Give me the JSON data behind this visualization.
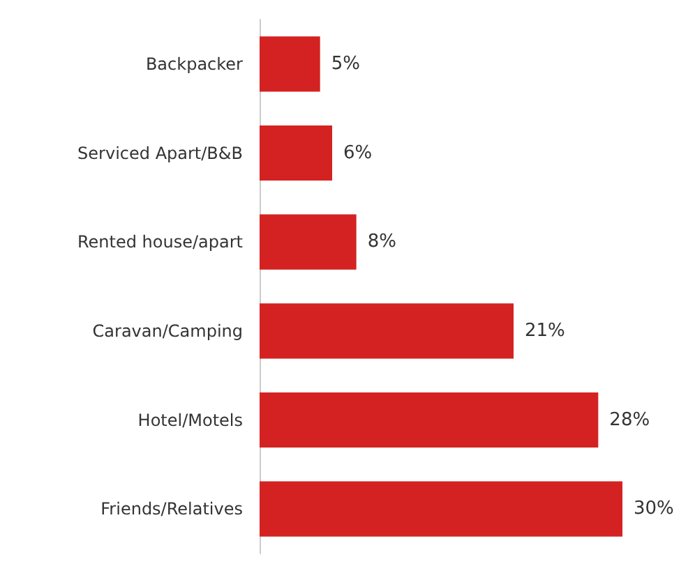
{
  "chart_data": {
    "type": "bar",
    "orientation": "horizontal",
    "categories": [
      "Backpacker",
      "Serviced Apart/B&B",
      "Rented house/apart",
      "Caravan/Camping",
      "Hotel/Motels",
      "Friends/Relatives"
    ],
    "values": [
      5,
      6,
      8,
      21,
      28,
      30
    ],
    "value_labels": [
      "5%",
      "6%",
      "8%",
      "21%",
      "28%",
      "30%"
    ],
    "color": "#d42222"
  }
}
